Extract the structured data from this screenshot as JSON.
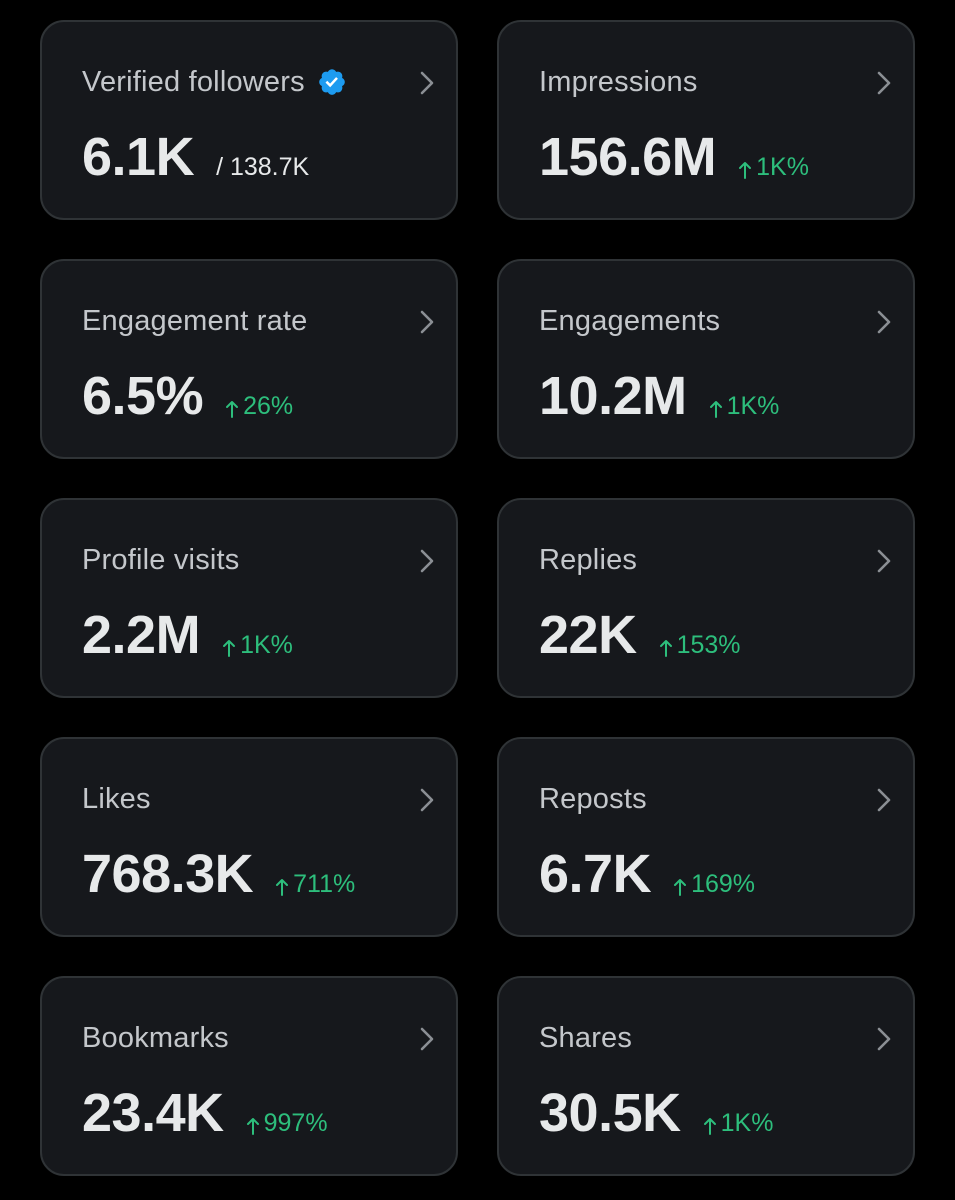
{
  "colors": {
    "background": "#000000",
    "card_background": "#16181c",
    "card_border": "#2f3336",
    "label_text": "#c4c7cb",
    "value_text": "#e7e9ea",
    "positive_change": "#2dbe7c",
    "verified_badge": "#1d9bf0"
  },
  "metrics": [
    {
      "label": "Verified followers",
      "value": "6.1K",
      "total": "/ 138.7K",
      "verified_icon": "verified-badge-icon"
    },
    {
      "label": "Impressions",
      "value": "156.6M",
      "change": "1K%",
      "change_icon": "arrow-up-icon"
    },
    {
      "label": "Engagement rate",
      "value": "6.5%",
      "change": "26%",
      "change_icon": "arrow-up-icon"
    },
    {
      "label": "Engagements",
      "value": "10.2M",
      "change": "1K%",
      "change_icon": "arrow-up-icon"
    },
    {
      "label": "Profile visits",
      "value": "2.2M",
      "change": "1K%",
      "change_icon": "arrow-up-icon"
    },
    {
      "label": "Replies",
      "value": "22K",
      "change": "153%",
      "change_icon": "arrow-up-icon"
    },
    {
      "label": "Likes",
      "value": "768.3K",
      "change": "711%",
      "change_icon": "arrow-up-icon"
    },
    {
      "label": "Reposts",
      "value": "6.7K",
      "change": "169%",
      "change_icon": "arrow-up-icon"
    },
    {
      "label": "Bookmarks",
      "value": "23.4K",
      "change": "997%",
      "change_icon": "arrow-up-icon"
    },
    {
      "label": "Shares",
      "value": "30.5K",
      "change": "1K%",
      "change_icon": "arrow-up-icon"
    }
  ]
}
